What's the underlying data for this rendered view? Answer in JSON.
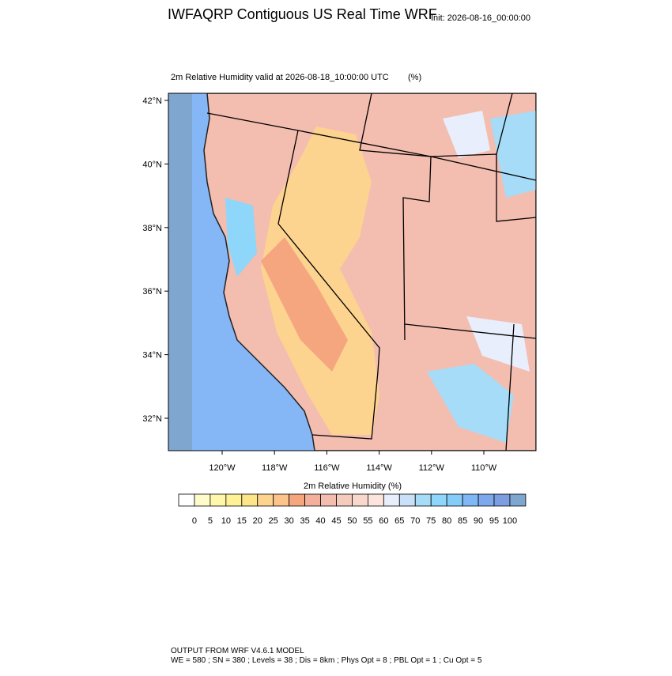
{
  "header": {
    "title": "IWFAQRP Contiguous US Real Time WRF",
    "init": "Init: 2026-08-16_00:00:00",
    "subtitle": "2m Relative Humidity valid at 2026-08-18_10:00:00 UTC",
    "units": "(%)"
  },
  "map": {
    "lat_ticks": [
      "42°N",
      "40°N",
      "38°N",
      "36°N",
      "34°N",
      "32°N"
    ],
    "lon_ticks": [
      "120°W",
      "118°W",
      "116°W",
      "114°W",
      "112°W",
      "110°W"
    ]
  },
  "colorbar": {
    "title": "2m Relative Humidity  (%)",
    "colors": [
      "#ffffff",
      "#fffccc",
      "#fff7aa",
      "#fff196",
      "#fde58a",
      "#fdd390",
      "#fcc38a",
      "#f5a67e",
      "#f3b09c",
      "#f3bdb0",
      "#f5cbbd",
      "#f8d8cc",
      "#fbe5dc",
      "#e8eefc",
      "#c8e1f8",
      "#a6dcf8",
      "#8ed6fa",
      "#86ccf8",
      "#80b8f5",
      "#7ea8ec",
      "#7d9de0",
      "#7ea6cf"
    ],
    "labels": [
      "0",
      "5",
      "10",
      "15",
      "20",
      "25",
      "30",
      "35",
      "40",
      "45",
      "50",
      "55",
      "60",
      "65",
      "70",
      "75",
      "80",
      "85",
      "90",
      "95",
      "100"
    ]
  },
  "footer": [
    "OUTPUT FROM WRF V4.6.1 MODEL",
    "WE = 580 ; SN = 380 ; Levels = 38 ; Dis = 8km ; Phys Opt = 8 ; PBL Opt = 1 ; Cu Opt = 5"
  ]
}
